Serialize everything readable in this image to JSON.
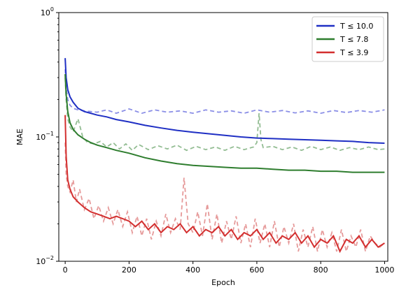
{
  "chart_data": {
    "type": "line",
    "xlabel": "Epoch",
    "ylabel": "MAE",
    "xlim": [
      -20,
      1010
    ],
    "ylim": [
      0.01,
      1.0
    ],
    "yscale": "log",
    "grid": false,
    "legend_position": "top-right",
    "x_ticks": [
      {
        "value": 0,
        "label": "0"
      },
      {
        "value": 200,
        "label": "200"
      },
      {
        "value": 400,
        "label": "400"
      },
      {
        "value": 600,
        "label": "600"
      },
      {
        "value": 800,
        "label": "800"
      },
      {
        "value": 1000,
        "label": "1000"
      }
    ],
    "y_ticks": [
      {
        "value": 0.01,
        "base": "10",
        "exp": "−2"
      },
      {
        "value": 0.1,
        "base": "10",
        "exp": "−1"
      },
      {
        "value": 1.0,
        "base": "10",
        "exp": "0"
      }
    ],
    "series": [
      {
        "name": "T ≤ 10.0",
        "color": "#1f2fc4",
        "dashed_color": "#8a8ee6",
        "train": [
          [
            0,
            0.43
          ],
          [
            3,
            0.3
          ],
          [
            8,
            0.24
          ],
          [
            15,
            0.21
          ],
          [
            25,
            0.19
          ],
          [
            40,
            0.17
          ],
          [
            60,
            0.16
          ],
          [
            80,
            0.155
          ],
          [
            100,
            0.15
          ],
          [
            130,
            0.145
          ],
          [
            160,
            0.138
          ],
          [
            200,
            0.132
          ],
          [
            250,
            0.124
          ],
          [
            300,
            0.118
          ],
          [
            350,
            0.113
          ],
          [
            400,
            0.109
          ],
          [
            450,
            0.106
          ],
          [
            500,
            0.103
          ],
          [
            550,
            0.1
          ],
          [
            600,
            0.098
          ],
          [
            650,
            0.097
          ],
          [
            700,
            0.096
          ],
          [
            750,
            0.095
          ],
          [
            800,
            0.094
          ],
          [
            850,
            0.093
          ],
          [
            900,
            0.092
          ],
          [
            950,
            0.09
          ],
          [
            1000,
            0.089
          ]
        ],
        "val": [
          [
            0,
            0.35
          ],
          [
            3,
            0.25
          ],
          [
            8,
            0.2
          ],
          [
            15,
            0.18
          ],
          [
            25,
            0.17
          ],
          [
            40,
            0.165
          ],
          [
            60,
            0.162
          ],
          [
            80,
            0.16
          ],
          [
            100,
            0.158
          ],
          [
            130,
            0.165
          ],
          [
            160,
            0.155
          ],
          [
            200,
            0.168
          ],
          [
            240,
            0.155
          ],
          [
            280,
            0.165
          ],
          [
            320,
            0.158
          ],
          [
            360,
            0.162
          ],
          [
            400,
            0.155
          ],
          [
            440,
            0.165
          ],
          [
            480,
            0.158
          ],
          [
            520,
            0.162
          ],
          [
            560,
            0.155
          ],
          [
            600,
            0.165
          ],
          [
            640,
            0.158
          ],
          [
            680,
            0.163
          ],
          [
            720,
            0.156
          ],
          [
            760,
            0.162
          ],
          [
            800,
            0.155
          ],
          [
            840,
            0.163
          ],
          [
            880,
            0.157
          ],
          [
            920,
            0.163
          ],
          [
            960,
            0.158
          ],
          [
            1000,
            0.165
          ]
        ]
      },
      {
        "name": "T ≤ 7.8",
        "color": "#2e7d2e",
        "dashed_color": "#93bd93",
        "train": [
          [
            0,
            0.32
          ],
          [
            3,
            0.22
          ],
          [
            8,
            0.16
          ],
          [
            15,
            0.13
          ],
          [
            25,
            0.115
          ],
          [
            40,
            0.104
          ],
          [
            60,
            0.096
          ],
          [
            80,
            0.09
          ],
          [
            100,
            0.086
          ],
          [
            130,
            0.082
          ],
          [
            160,
            0.078
          ],
          [
            200,
            0.074
          ],
          [
            250,
            0.068
          ],
          [
            300,
            0.064
          ],
          [
            350,
            0.061
          ],
          [
            400,
            0.059
          ],
          [
            450,
            0.058
          ],
          [
            500,
            0.057
          ],
          [
            550,
            0.056
          ],
          [
            600,
            0.056
          ],
          [
            650,
            0.055
          ],
          [
            700,
            0.054
          ],
          [
            750,
            0.054
          ],
          [
            800,
            0.053
          ],
          [
            850,
            0.053
          ],
          [
            900,
            0.052
          ],
          [
            950,
            0.052
          ],
          [
            1000,
            0.052
          ]
        ],
        "val": [
          [
            0,
            0.3
          ],
          [
            3,
            0.2
          ],
          [
            8,
            0.14
          ],
          [
            15,
            0.12
          ],
          [
            25,
            0.11
          ],
          [
            40,
            0.14
          ],
          [
            55,
            0.1
          ],
          [
            70,
            0.09
          ],
          [
            90,
            0.088
          ],
          [
            110,
            0.092
          ],
          [
            130,
            0.083
          ],
          [
            150,
            0.09
          ],
          [
            170,
            0.08
          ],
          [
            190,
            0.088
          ],
          [
            210,
            0.078
          ],
          [
            230,
            0.087
          ],
          [
            260,
            0.079
          ],
          [
            290,
            0.085
          ],
          [
            320,
            0.08
          ],
          [
            350,
            0.086
          ],
          [
            380,
            0.078
          ],
          [
            410,
            0.084
          ],
          [
            440,
            0.079
          ],
          [
            470,
            0.083
          ],
          [
            500,
            0.078
          ],
          [
            530,
            0.084
          ],
          [
            560,
            0.079
          ],
          [
            590,
            0.083
          ],
          [
            600,
            0.09
          ],
          [
            607,
            0.155
          ],
          [
            613,
            0.095
          ],
          [
            620,
            0.082
          ],
          [
            650,
            0.084
          ],
          [
            680,
            0.079
          ],
          [
            710,
            0.083
          ],
          [
            740,
            0.078
          ],
          [
            770,
            0.084
          ],
          [
            800,
            0.079
          ],
          [
            830,
            0.083
          ],
          [
            860,
            0.078
          ],
          [
            890,
            0.082
          ],
          [
            920,
            0.079
          ],
          [
            950,
            0.083
          ],
          [
            980,
            0.079
          ],
          [
            1000,
            0.08
          ]
        ]
      },
      {
        "name": "T ≤ 3.9",
        "color": "#d32f2f",
        "dashed_color": "#e69a9a",
        "train": [
          [
            0,
            0.15
          ],
          [
            3,
            0.07
          ],
          [
            8,
            0.045
          ],
          [
            15,
            0.038
          ],
          [
            25,
            0.033
          ],
          [
            40,
            0.03
          ],
          [
            60,
            0.027
          ],
          [
            80,
            0.025
          ],
          [
            100,
            0.024
          ],
          [
            120,
            0.023
          ],
          [
            140,
            0.022
          ],
          [
            160,
            0.023
          ],
          [
            180,
            0.022
          ],
          [
            200,
            0.021
          ],
          [
            220,
            0.019
          ],
          [
            240,
            0.021
          ],
          [
            260,
            0.018
          ],
          [
            280,
            0.02
          ],
          [
            300,
            0.017
          ],
          [
            320,
            0.019
          ],
          [
            340,
            0.018
          ],
          [
            360,
            0.02
          ],
          [
            380,
            0.017
          ],
          [
            400,
            0.019
          ],
          [
            420,
            0.016
          ],
          [
            440,
            0.018
          ],
          [
            460,
            0.017
          ],
          [
            480,
            0.019
          ],
          [
            500,
            0.016
          ],
          [
            520,
            0.018
          ],
          [
            540,
            0.015
          ],
          [
            560,
            0.017
          ],
          [
            580,
            0.016
          ],
          [
            600,
            0.018
          ],
          [
            620,
            0.015
          ],
          [
            640,
            0.017
          ],
          [
            660,
            0.014
          ],
          [
            680,
            0.016
          ],
          [
            700,
            0.015
          ],
          [
            720,
            0.017
          ],
          [
            740,
            0.014
          ],
          [
            760,
            0.016
          ],
          [
            780,
            0.013
          ],
          [
            800,
            0.015
          ],
          [
            820,
            0.014
          ],
          [
            840,
            0.016
          ],
          [
            860,
            0.012
          ],
          [
            880,
            0.015
          ],
          [
            900,
            0.014
          ],
          [
            920,
            0.016
          ],
          [
            940,
            0.013
          ],
          [
            960,
            0.015
          ],
          [
            980,
            0.013
          ],
          [
            1000,
            0.014
          ]
        ],
        "val": [
          [
            0,
            0.09
          ],
          [
            3,
            0.05
          ],
          [
            8,
            0.04
          ],
          [
            15,
            0.036
          ],
          [
            25,
            0.045
          ],
          [
            35,
            0.03
          ],
          [
            45,
            0.038
          ],
          [
            60,
            0.026
          ],
          [
            75,
            0.032
          ],
          [
            90,
            0.022
          ],
          [
            105,
            0.028
          ],
          [
            120,
            0.021
          ],
          [
            135,
            0.027
          ],
          [
            150,
            0.02
          ],
          [
            165,
            0.026
          ],
          [
            180,
            0.019
          ],
          [
            195,
            0.025
          ],
          [
            210,
            0.017
          ],
          [
            225,
            0.023
          ],
          [
            240,
            0.016
          ],
          [
            255,
            0.022
          ],
          [
            270,
            0.015
          ],
          [
            285,
            0.021
          ],
          [
            300,
            0.016
          ],
          [
            315,
            0.024
          ],
          [
            330,
            0.017
          ],
          [
            345,
            0.022
          ],
          [
            360,
            0.018
          ],
          [
            372,
            0.047
          ],
          [
            385,
            0.02
          ],
          [
            400,
            0.017
          ],
          [
            415,
            0.025
          ],
          [
            430,
            0.016
          ],
          [
            445,
            0.029
          ],
          [
            460,
            0.015
          ],
          [
            475,
            0.024
          ],
          [
            490,
            0.014
          ],
          [
            505,
            0.021
          ],
          [
            520,
            0.015
          ],
          [
            535,
            0.023
          ],
          [
            550,
            0.014
          ],
          [
            565,
            0.02
          ],
          [
            580,
            0.013
          ],
          [
            595,
            0.022
          ],
          [
            610,
            0.014
          ],
          [
            625,
            0.02
          ],
          [
            640,
            0.013
          ],
          [
            655,
            0.021
          ],
          [
            670,
            0.013
          ],
          [
            685,
            0.019
          ],
          [
            700,
            0.014
          ],
          [
            715,
            0.02
          ],
          [
            730,
            0.012
          ],
          [
            745,
            0.018
          ],
          [
            760,
            0.013
          ],
          [
            775,
            0.019
          ],
          [
            790,
            0.012
          ],
          [
            805,
            0.018
          ],
          [
            820,
            0.013
          ],
          [
            835,
            0.017
          ],
          [
            850,
            0.012
          ],
          [
            865,
            0.018
          ],
          [
            880,
            0.012
          ],
          [
            895,
            0.016
          ],
          [
            910,
            0.013
          ],
          [
            925,
            0.018
          ],
          [
            940,
            0.012
          ],
          [
            955,
            0.016
          ],
          [
            970,
            0.014
          ],
          [
            985,
            0.013
          ],
          [
            1000,
            0.014
          ]
        ]
      }
    ]
  }
}
